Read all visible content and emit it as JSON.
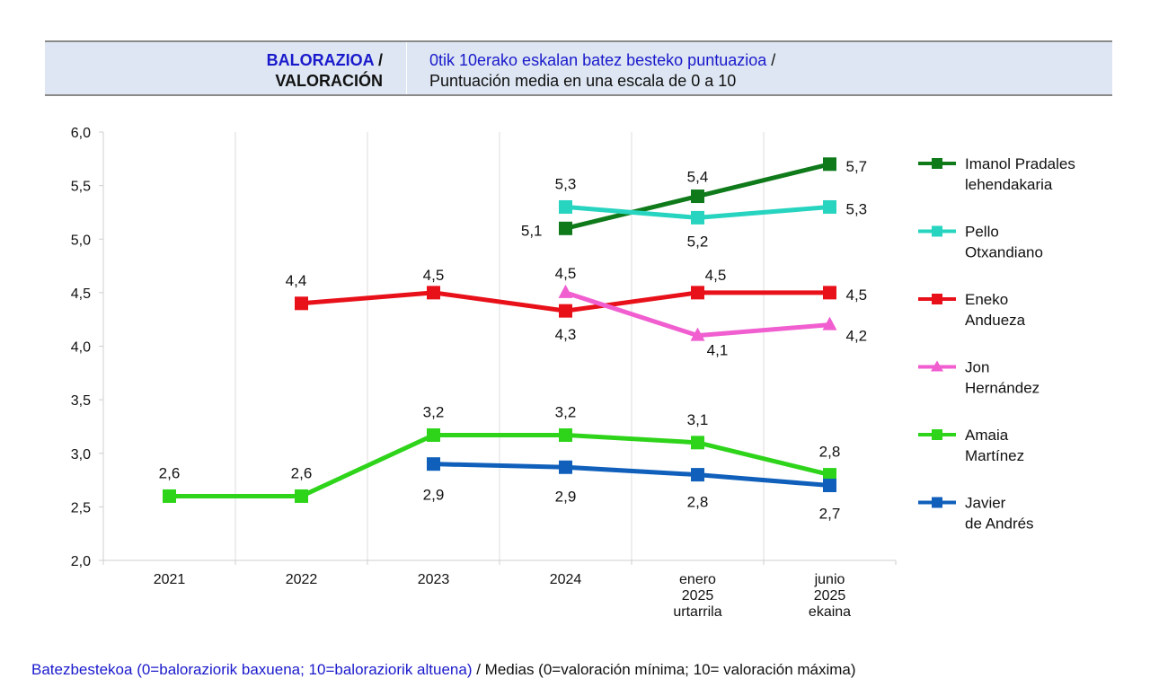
{
  "header": {
    "title_eu": "BALORAZIOA",
    "title_sep": " /",
    "title_es": "VALORACIÓN",
    "subtitle_eu": "0tik 10erako eskalan batez besteko puntuazioa",
    "subtitle_sep": " /",
    "subtitle_es": "Puntuación media en una escala de 0 a 10"
  },
  "footer": {
    "note_eu": "Batezbestekoa (0=baloraziorik baxuena; 10=baloraziorik altuena)",
    "note_es": " / Medias (0=valoración mínima; 10= valoración máxima)"
  },
  "chart_data": {
    "type": "line",
    "categories": [
      [
        "2021"
      ],
      [
        "2022"
      ],
      [
        "2023"
      ],
      [
        "2024"
      ],
      [
        "enero",
        "2025",
        "urtarrila"
      ],
      [
        "junio",
        "2025",
        "ekaina"
      ]
    ],
    "ylim": [
      2.0,
      6.0
    ],
    "yticks": [
      "2,0",
      "2,5",
      "3,0",
      "3,5",
      "4,0",
      "4,5",
      "5,0",
      "5,5",
      "6,0"
    ],
    "ytick_values": [
      2.0,
      2.5,
      3.0,
      3.5,
      4.0,
      4.5,
      5.0,
      5.5,
      6.0
    ],
    "grid": "vertical",
    "legend_position": "right",
    "series": [
      {
        "name": [
          "Imanol Pradales",
          "lehendakaria"
        ],
        "color": "#0e7a1a",
        "marker": "square",
        "values": [
          null,
          null,
          null,
          5.1,
          5.4,
          5.7
        ],
        "labels": [
          null,
          null,
          null,
          "5,1",
          "5,4",
          "5,7"
        ]
      },
      {
        "name": [
          "Pello",
          "Otxandiano"
        ],
        "color": "#27d4c0",
        "marker": "square",
        "values": [
          null,
          null,
          null,
          5.3,
          5.2,
          5.3
        ],
        "labels": [
          null,
          null,
          null,
          "5,3",
          "5,2",
          "5,3"
        ]
      },
      {
        "name": [
          "Eneko",
          "Andueza"
        ],
        "color": "#e8111a",
        "marker": "square",
        "values": [
          null,
          4.4,
          4.5,
          4.33,
          4.5,
          4.5
        ],
        "labels": [
          null,
          "4,4",
          "4,5",
          "4,3",
          "4,5",
          "4,5"
        ]
      },
      {
        "name": [
          "Jon",
          "Hernández"
        ],
        "color": "#f05ed0",
        "marker": "triangle",
        "values": [
          null,
          null,
          null,
          4.5,
          4.1,
          4.2
        ],
        "labels": [
          null,
          null,
          null,
          "4,5",
          "4,1",
          "4,2"
        ]
      },
      {
        "name": [
          "Amaia",
          "Martínez"
        ],
        "color": "#2ed41a",
        "marker": "square",
        "values": [
          2.6,
          2.6,
          3.17,
          3.17,
          3.1,
          2.8
        ],
        "labels": [
          "2,6",
          "2,6",
          "3,2",
          "3,2",
          "3,1",
          "2,8"
        ]
      },
      {
        "name": [
          "Javier",
          "de Andrés"
        ],
        "color": "#1060bb",
        "marker": "square",
        "values": [
          null,
          null,
          2.9,
          2.87,
          2.8,
          2.7
        ],
        "labels": [
          null,
          null,
          "2,9",
          "2,9",
          "2,8",
          "2,7"
        ]
      }
    ]
  }
}
